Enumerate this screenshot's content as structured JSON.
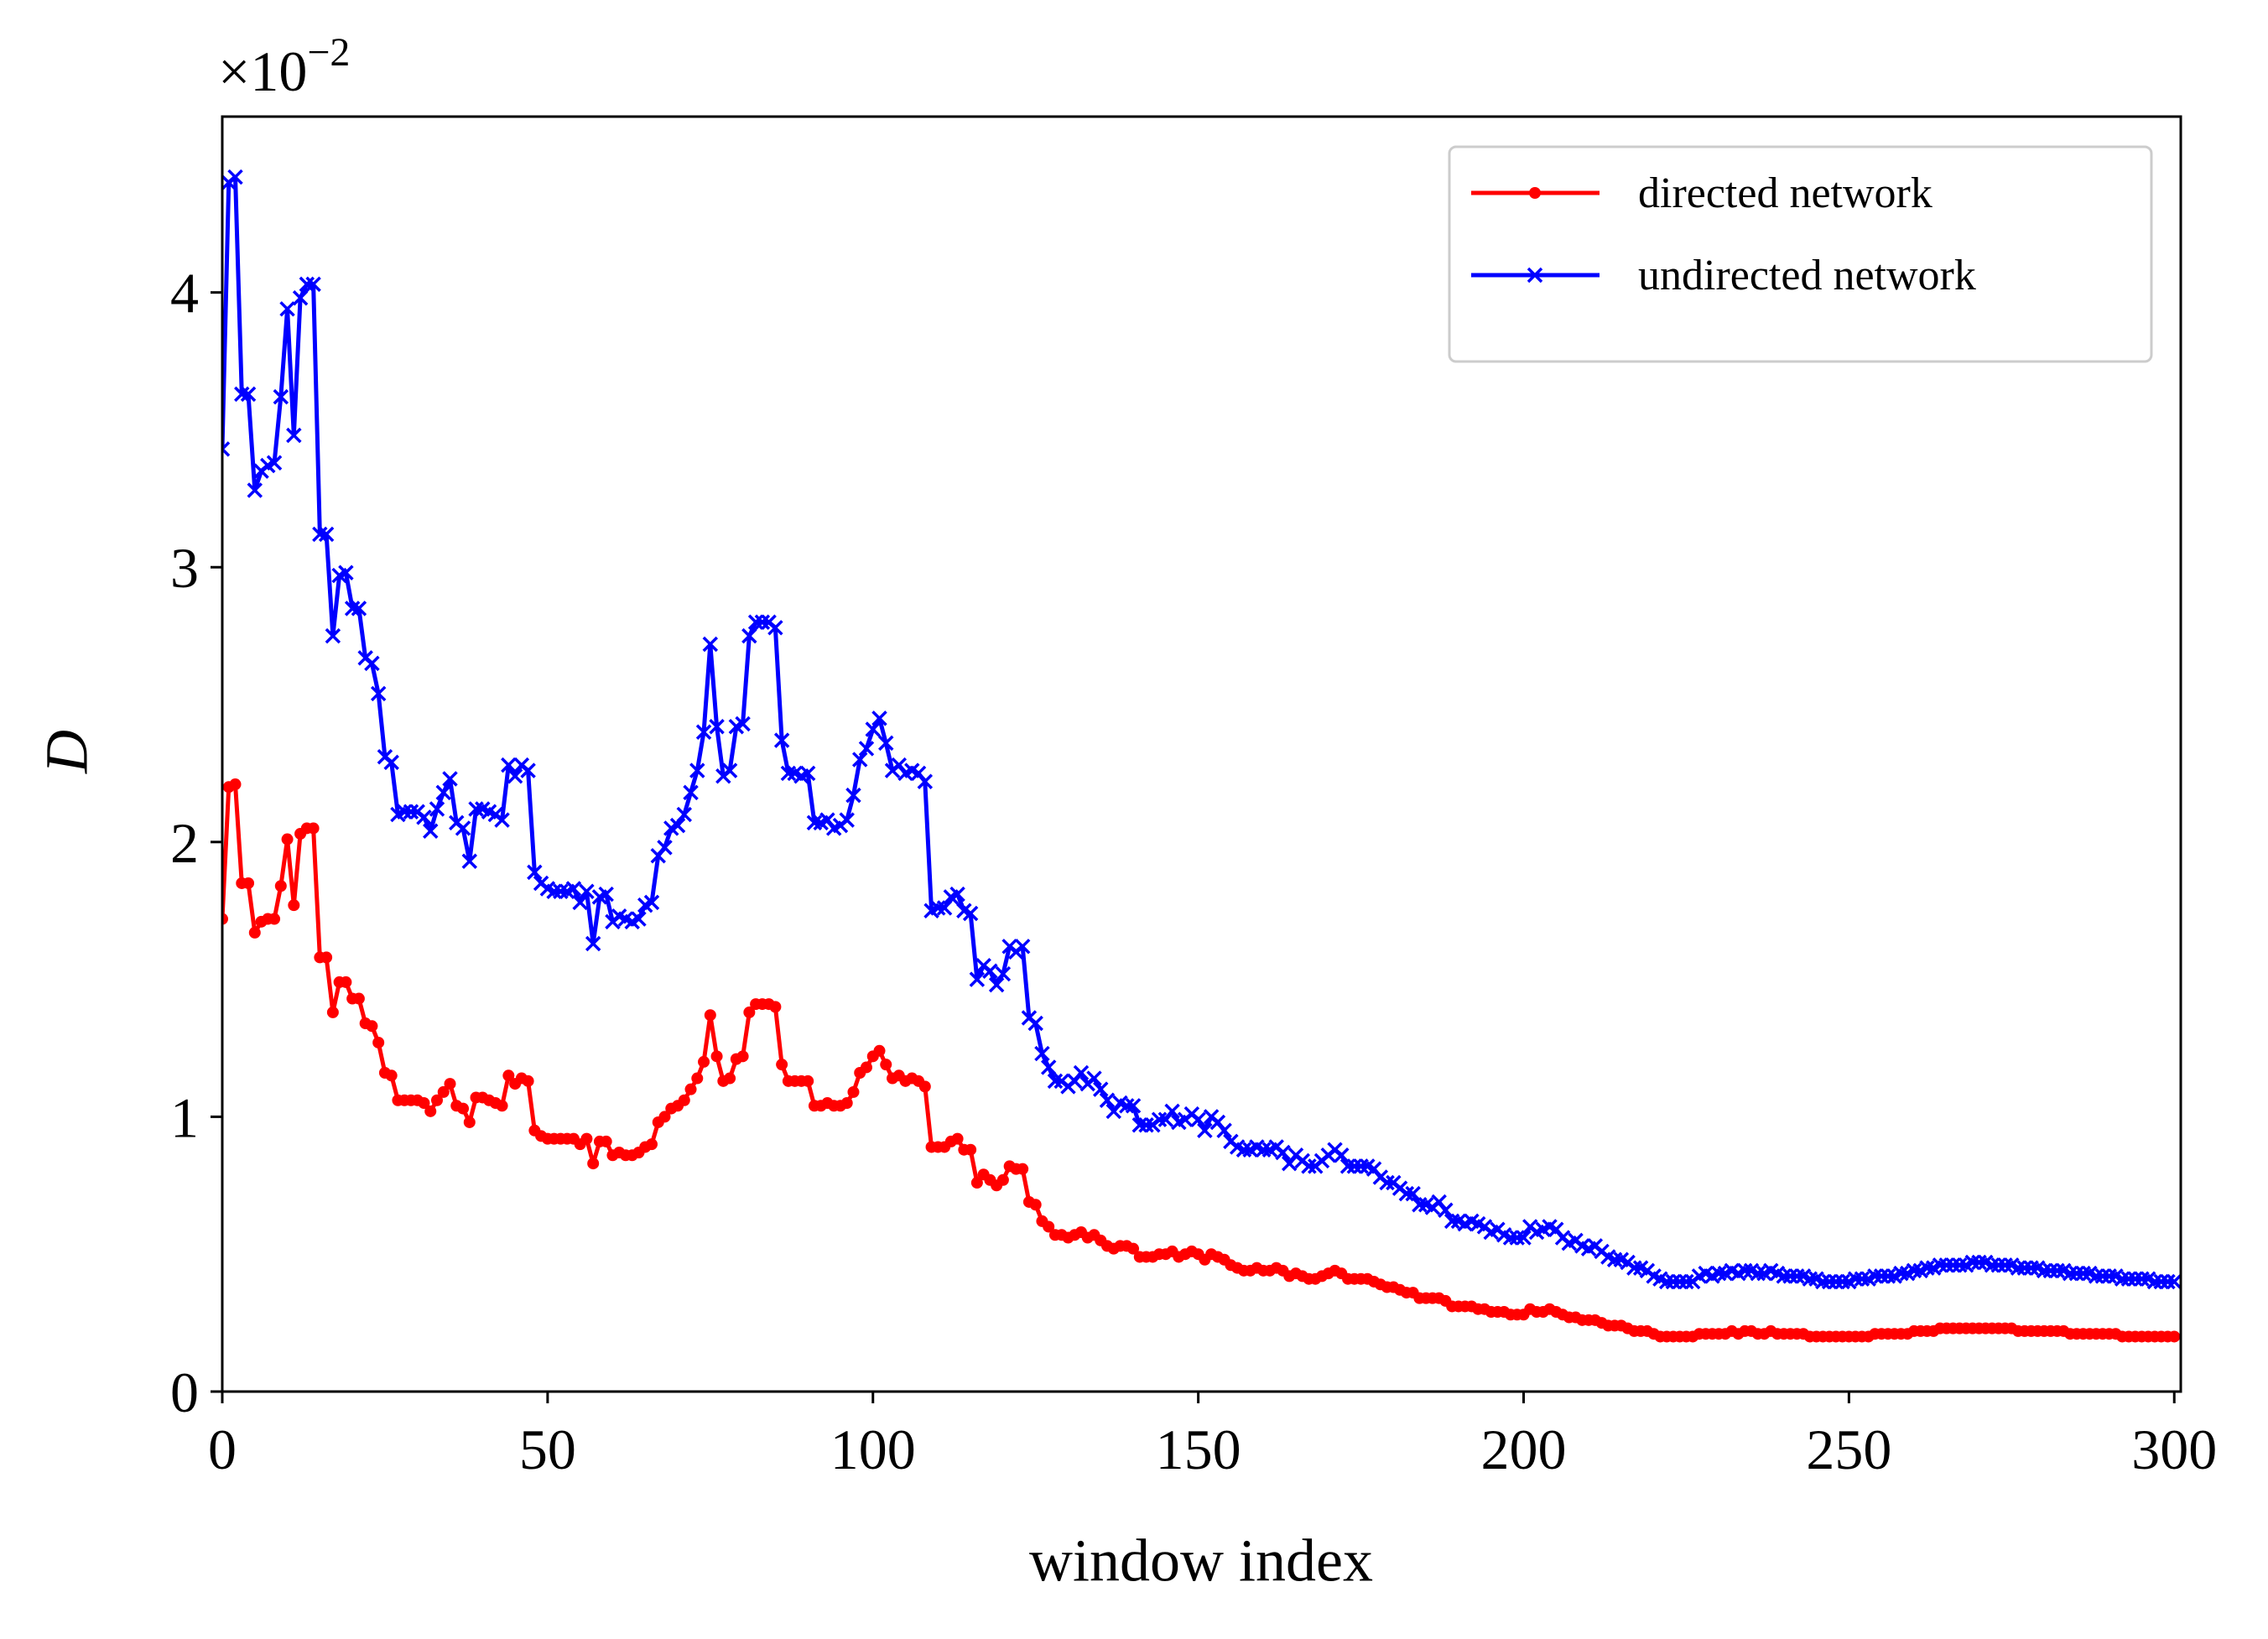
{
  "chart_data": {
    "type": "line",
    "xlabel": "window index",
    "ylabel": "D",
    "y_offset_label": {
      "base": "×10",
      "exponent": "−2"
    },
    "xlim": [
      0,
      301
    ],
    "ylim": [
      0,
      4.64
    ],
    "xticks": [
      0,
      50,
      100,
      150,
      200,
      250,
      300
    ],
    "yticks": [
      0,
      1,
      2,
      3,
      4
    ],
    "legend": "upper right",
    "x": [
      0,
      1,
      2,
      3,
      4,
      5,
      6,
      7,
      8,
      9,
      10,
      11,
      12,
      13,
      14,
      15,
      16,
      17,
      18,
      19,
      20,
      21,
      22,
      23,
      24,
      25,
      26,
      27,
      28,
      29,
      30,
      31,
      32,
      33,
      34,
      35,
      36,
      37,
      38,
      39,
      40,
      41,
      42,
      43,
      44,
      45,
      46,
      47,
      48,
      49,
      50,
      51,
      52,
      53,
      54,
      55,
      56,
      57,
      58,
      59,
      60,
      61,
      62,
      63,
      64,
      65,
      66,
      67,
      68,
      69,
      70,
      71,
      72,
      73,
      74,
      75,
      76,
      77,
      78,
      79,
      80,
      81,
      82,
      83,
      84,
      85,
      86,
      87,
      88,
      89,
      90,
      91,
      92,
      93,
      94,
      95,
      96,
      97,
      98,
      99,
      100,
      101,
      102,
      103,
      104,
      105,
      106,
      107,
      108,
      109,
      110,
      111,
      112,
      113,
      114,
      115,
      116,
      117,
      118,
      119,
      120,
      121,
      122,
      123,
      124,
      125,
      126,
      127,
      128,
      129,
      130,
      131,
      132,
      133,
      134,
      135,
      136,
      137,
      138,
      139,
      140,
      141,
      142,
      143,
      144,
      145,
      146,
      147,
      148,
      149,
      150,
      151,
      152,
      153,
      154,
      155,
      156,
      157,
      158,
      159,
      160,
      161,
      162,
      163,
      164,
      165,
      166,
      167,
      168,
      169,
      170,
      171,
      172,
      173,
      174,
      175,
      176,
      177,
      178,
      179,
      180,
      181,
      182,
      183,
      184,
      185,
      186,
      187,
      188,
      189,
      190,
      191,
      192,
      193,
      194,
      195,
      196,
      197,
      198,
      199,
      200,
      201,
      202,
      203,
      204,
      205,
      206,
      207,
      208,
      209,
      210,
      211,
      212,
      213,
      214,
      215,
      216,
      217,
      218,
      219,
      220,
      221,
      222,
      223,
      224,
      225,
      226,
      227,
      228,
      229,
      230,
      231,
      232,
      233,
      234,
      235,
      236,
      237,
      238,
      239,
      240,
      241,
      242,
      243,
      244,
      245,
      246,
      247,
      248,
      249,
      250,
      251,
      252,
      253,
      254,
      255,
      256,
      257,
      258,
      259,
      260,
      261,
      262,
      263,
      264,
      265,
      266,
      267,
      268,
      269,
      270,
      271,
      272,
      273,
      274,
      275,
      276,
      277,
      278,
      279,
      280,
      281,
      282,
      283,
      284,
      285,
      286,
      287,
      288,
      289,
      290,
      291,
      292,
      293,
      294,
      295,
      296,
      297,
      298,
      299,
      300
    ],
    "series": [
      {
        "name": "directed network",
        "color": "#ff0000",
        "marker": "circle",
        "values": [
          1.72,
          2.2,
          2.21,
          1.85,
          1.85,
          1.67,
          1.71,
          1.72,
          1.72,
          1.84,
          2.01,
          1.77,
          2.03,
          2.05,
          2.05,
          1.58,
          1.58,
          1.38,
          1.49,
          1.49,
          1.43,
          1.43,
          1.34,
          1.33,
          1.27,
          1.16,
          1.15,
          1.06,
          1.06,
          1.06,
          1.06,
          1.05,
          1.02,
          1.06,
          1.09,
          1.12,
          1.04,
          1.03,
          0.98,
          1.07,
          1.07,
          1.06,
          1.05,
          1.04,
          1.15,
          1.12,
          1.14,
          1.13,
          0.95,
          0.93,
          0.92,
          0.92,
          0.92,
          0.92,
          0.92,
          0.9,
          0.92,
          0.83,
          0.91,
          0.91,
          0.86,
          0.87,
          0.86,
          0.86,
          0.87,
          0.89,
          0.9,
          0.98,
          1.0,
          1.03,
          1.04,
          1.06,
          1.1,
          1.14,
          1.2,
          1.37,
          1.22,
          1.13,
          1.14,
          1.21,
          1.22,
          1.38,
          1.41,
          1.41,
          1.41,
          1.4,
          1.19,
          1.13,
          1.13,
          1.13,
          1.13,
          1.04,
          1.04,
          1.05,
          1.04,
          1.04,
          1.05,
          1.09,
          1.16,
          1.18,
          1.22,
          1.24,
          1.19,
          1.14,
          1.15,
          1.13,
          1.14,
          1.13,
          1.11,
          0.89,
          0.89,
          0.89,
          0.91,
          0.92,
          0.88,
          0.88,
          0.76,
          0.79,
          0.77,
          0.75,
          0.77,
          0.82,
          0.81,
          0.81,
          0.69,
          0.68,
          0.62,
          0.6,
          0.57,
          0.57,
          0.56,
          0.57,
          0.58,
          0.56,
          0.57,
          0.55,
          0.53,
          0.52,
          0.53,
          0.53,
          0.52,
          0.49,
          0.49,
          0.49,
          0.5,
          0.5,
          0.51,
          0.49,
          0.5,
          0.51,
          0.5,
          0.48,
          0.5,
          0.49,
          0.48,
          0.46,
          0.45,
          0.44,
          0.44,
          0.45,
          0.44,
          0.44,
          0.45,
          0.44,
          0.42,
          0.43,
          0.42,
          0.41,
          0.41,
          0.42,
          0.43,
          0.44,
          0.43,
          0.41,
          0.41,
          0.41,
          0.41,
          0.4,
          0.39,
          0.38,
          0.38,
          0.37,
          0.36,
          0.36,
          0.34,
          0.34,
          0.34,
          0.34,
          0.33,
          0.31,
          0.31,
          0.31,
          0.31,
          0.3,
          0.3,
          0.29,
          0.29,
          0.29,
          0.28,
          0.28,
          0.28,
          0.3,
          0.29,
          0.29,
          0.3,
          0.29,
          0.28,
          0.27,
          0.27,
          0.26,
          0.26,
          0.26,
          0.25,
          0.24,
          0.24,
          0.24,
          0.23,
          0.22,
          0.22,
          0.22,
          0.21,
          0.2,
          0.2,
          0.2,
          0.2,
          0.2,
          0.2,
          0.21,
          0.21,
          0.21,
          0.21,
          0.21,
          0.22,
          0.21,
          0.22,
          0.22,
          0.21,
          0.21,
          0.22,
          0.21,
          0.21,
          0.21,
          0.21,
          0.21,
          0.2,
          0.2,
          0.2,
          0.2,
          0.2,
          0.2,
          0.2,
          0.2,
          0.2,
          0.2,
          0.21,
          0.21,
          0.21,
          0.21,
          0.21,
          0.21,
          0.22,
          0.22,
          0.22,
          0.22,
          0.23,
          0.23,
          0.23,
          0.23,
          0.23,
          0.23,
          0.23,
          0.23,
          0.23,
          0.23,
          0.23,
          0.23,
          0.22,
          0.22,
          0.22,
          0.22,
          0.22,
          0.22,
          0.22,
          0.22,
          0.21,
          0.21,
          0.21,
          0.21,
          0.21,
          0.21,
          0.21,
          0.21,
          0.2,
          0.2,
          0.2,
          0.2,
          0.2,
          0.2,
          0.2,
          0.2,
          0.2
        ]
      },
      {
        "name": "undirected network",
        "color": "#0000ff",
        "marker": "x",
        "values": [
          3.43,
          4.4,
          4.42,
          3.63,
          3.63,
          3.28,
          3.35,
          3.37,
          3.38,
          3.62,
          3.94,
          3.48,
          3.98,
          4.03,
          4.03,
          3.12,
          3.12,
          2.75,
          2.97,
          2.98,
          2.85,
          2.85,
          2.67,
          2.65,
          2.54,
          2.31,
          2.29,
          2.1,
          2.11,
          2.11,
          2.11,
          2.09,
          2.04,
          2.12,
          2.18,
          2.23,
          2.07,
          2.05,
          1.93,
          2.12,
          2.12,
          2.11,
          2.1,
          2.08,
          2.28,
          2.24,
          2.28,
          2.26,
          1.89,
          1.85,
          1.83,
          1.82,
          1.82,
          1.82,
          1.83,
          1.78,
          1.82,
          1.63,
          1.8,
          1.81,
          1.71,
          1.73,
          1.72,
          1.71,
          1.72,
          1.77,
          1.78,
          1.95,
          1.98,
          2.05,
          2.06,
          2.1,
          2.18,
          2.26,
          2.4,
          2.72,
          2.42,
          2.24,
          2.26,
          2.42,
          2.43,
          2.75,
          2.8,
          2.8,
          2.8,
          2.78,
          2.37,
          2.25,
          2.25,
          2.24,
          2.25,
          2.07,
          2.07,
          2.08,
          2.05,
          2.06,
          2.08,
          2.17,
          2.3,
          2.34,
          2.41,
          2.45,
          2.36,
          2.26,
          2.28,
          2.25,
          2.26,
          2.25,
          2.22,
          1.75,
          1.76,
          1.76,
          1.8,
          1.81,
          1.75,
          1.74,
          1.5,
          1.55,
          1.53,
          1.48,
          1.52,
          1.62,
          1.6,
          1.62,
          1.36,
          1.34,
          1.23,
          1.18,
          1.13,
          1.13,
          1.11,
          1.13,
          1.16,
          1.12,
          1.14,
          1.1,
          1.06,
          1.02,
          1.05,
          1.04,
          1.04,
          0.97,
          0.97,
          0.97,
          0.99,
          0.99,
          1.02,
          0.98,
          0.99,
          1.01,
          0.99,
          0.95,
          1.0,
          0.98,
          0.95,
          0.91,
          0.89,
          0.88,
          0.88,
          0.89,
          0.88,
          0.88,
          0.89,
          0.87,
          0.83,
          0.86,
          0.84,
          0.82,
          0.82,
          0.84,
          0.86,
          0.88,
          0.86,
          0.82,
          0.82,
          0.82,
          0.82,
          0.81,
          0.78,
          0.76,
          0.76,
          0.74,
          0.72,
          0.72,
          0.68,
          0.68,
          0.67,
          0.69,
          0.66,
          0.62,
          0.62,
          0.61,
          0.62,
          0.61,
          0.6,
          0.58,
          0.59,
          0.57,
          0.56,
          0.56,
          0.56,
          0.6,
          0.58,
          0.59,
          0.6,
          0.59,
          0.56,
          0.54,
          0.55,
          0.53,
          0.52,
          0.53,
          0.51,
          0.49,
          0.48,
          0.48,
          0.47,
          0.45,
          0.45,
          0.44,
          0.42,
          0.41,
          0.4,
          0.4,
          0.4,
          0.4,
          0.4,
          0.42,
          0.43,
          0.42,
          0.43,
          0.43,
          0.44,
          0.43,
          0.44,
          0.44,
          0.43,
          0.43,
          0.44,
          0.43,
          0.42,
          0.42,
          0.42,
          0.42,
          0.41,
          0.41,
          0.4,
          0.4,
          0.4,
          0.4,
          0.4,
          0.41,
          0.41,
          0.41,
          0.42,
          0.42,
          0.42,
          0.42,
          0.43,
          0.43,
          0.44,
          0.44,
          0.45,
          0.45,
          0.46,
          0.46,
          0.46,
          0.46,
          0.46,
          0.47,
          0.47,
          0.47,
          0.46,
          0.46,
          0.46,
          0.46,
          0.45,
          0.45,
          0.45,
          0.45,
          0.44,
          0.44,
          0.44,
          0.44,
          0.43,
          0.43,
          0.43,
          0.43,
          0.42,
          0.42,
          0.42,
          0.42,
          0.41,
          0.41,
          0.41,
          0.41,
          0.41,
          0.4,
          0.4,
          0.4,
          0.4
        ]
      }
    ]
  }
}
